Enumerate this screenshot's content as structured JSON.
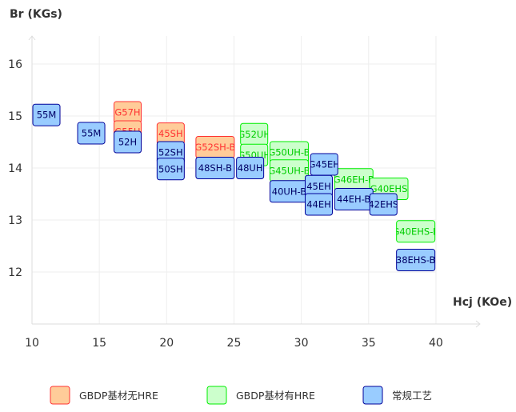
{
  "chart_data": {
    "type": "scatter",
    "xlabel": "Hcj (KOe)",
    "ylabel": "Br (KGs)",
    "xlim": [
      10,
      42
    ],
    "ylim": [
      11,
      16.5
    ],
    "xticks": [
      10,
      15,
      20,
      25,
      30,
      35,
      40
    ],
    "yticks": [
      12,
      13,
      14,
      15,
      16
    ],
    "grid": true,
    "legend_position": "bottom",
    "series": [
      {
        "name": "GBDP基材无HRE",
        "fill": "#ffcc99",
        "stroke": "#ff3333",
        "text": "#ff3333",
        "points": [
          {
            "label": "G57H",
            "x": 17.1,
            "y": 15.07
          },
          {
            "label": "G55H",
            "x": 17.1,
            "y": 14.7
          },
          {
            "label": "45SH",
            "x": 20.3,
            "y": 14.66
          },
          {
            "label": "G52SH-B",
            "x": 23.6,
            "y": 14.4
          }
        ]
      },
      {
        "name": "GBDP基材有HRE",
        "fill": "#ccffcc",
        "stroke": "#00ee00",
        "text": "#00cc00",
        "points": [
          {
            "label": "G52UH",
            "x": 26.5,
            "y": 14.65
          },
          {
            "label": "G50UH",
            "x": 26.5,
            "y": 14.25
          },
          {
            "label": "G50UH-B",
            "x": 29.1,
            "y": 14.3
          },
          {
            "label": "G45UH-B",
            "x": 29.1,
            "y": 13.95
          },
          {
            "label": "G46EH-B",
            "x": 33.9,
            "y": 13.78
          },
          {
            "label": "G40EHS",
            "x": 36.5,
            "y": 13.6
          },
          {
            "label": "G40EHS-B",
            "x": 38.5,
            "y": 12.78
          }
        ]
      },
      {
        "name": "常规工艺",
        "fill": "#99ccff",
        "stroke": "#000099",
        "text": "#000066",
        "points": [
          {
            "label": "55M",
            "x": 11.07,
            "y": 15.02
          },
          {
            "label": "55M",
            "x": 14.4,
            "y": 14.67
          },
          {
            "label": "52H",
            "x": 17.1,
            "y": 14.5
          },
          {
            "label": "52SH",
            "x": 20.3,
            "y": 14.3
          },
          {
            "label": "50SH",
            "x": 20.3,
            "y": 13.98
          },
          {
            "label": "48SH-B",
            "x": 23.6,
            "y": 14.0
          },
          {
            "label": "48UH",
            "x": 26.2,
            "y": 14.0
          },
          {
            "label": "40UH-B",
            "x": 29.1,
            "y": 13.55
          },
          {
            "label": "G45EH",
            "x": 31.7,
            "y": 14.07
          },
          {
            "label": "45EH",
            "x": 31.3,
            "y": 13.65
          },
          {
            "label": "44EH",
            "x": 31.3,
            "y": 13.3
          },
          {
            "label": "44EH-B",
            "x": 33.9,
            "y": 13.4
          },
          {
            "label": "42EHS",
            "x": 36.1,
            "y": 13.3
          },
          {
            "label": "38EHS-B",
            "x": 38.5,
            "y": 12.23
          }
        ]
      }
    ]
  }
}
